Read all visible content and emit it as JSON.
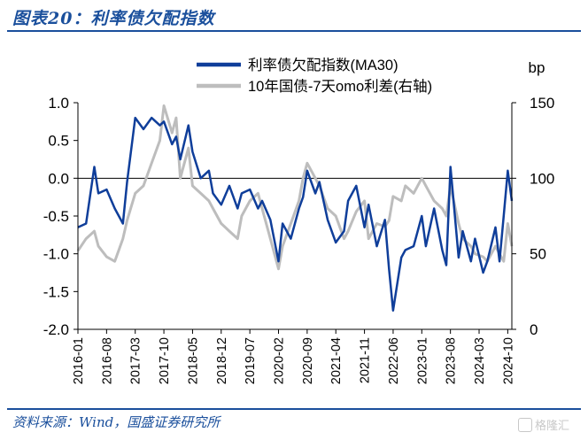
{
  "header": {
    "title": "图表20：利率债欠配指数"
  },
  "footer": {
    "source": "资料来源：Wind，国盛证券研究所",
    "watermark": "格隆汇"
  },
  "colors": {
    "primary": "#0f3e9a",
    "secondary": "#bdbdbd",
    "brand": "#1a4f9c"
  },
  "chart_data": {
    "type": "line",
    "y_axis_unit_right": "bp",
    "ylim_left": [
      -2.0,
      1.0
    ],
    "ylim_right": [
      0,
      150
    ],
    "yticks_left": [
      "1.0",
      "0.5",
      "0.0",
      "-0.5",
      "-1.0",
      "-1.5",
      "-2.0"
    ],
    "yticks_right": [
      "150",
      "100",
      "50",
      "0"
    ],
    "xticks": [
      "2016-01",
      "2016-08",
      "2017-03",
      "2017-10",
      "2018-05",
      "2018-12",
      "2019-07",
      "2020-02",
      "2020-09",
      "2021-04",
      "2021-11",
      "2022-06",
      "2023-01",
      "2023-08",
      "2024-03",
      "2024-10"
    ],
    "legend": "top-center",
    "series": [
      {
        "name": "利率债欠配指数(MA30)",
        "axis": "left",
        "color": "#0f3e9a",
        "x": [
          "2016-01",
          "2016-03",
          "2016-05",
          "2016-06",
          "2016-08",
          "2016-10",
          "2016-12",
          "2017-01",
          "2017-03",
          "2017-05",
          "2017-07",
          "2017-09",
          "2017-10",
          "2017-12",
          "2018-01",
          "2018-02",
          "2018-04",
          "2018-05",
          "2018-07",
          "2018-09",
          "2018-10",
          "2018-12",
          "2019-02",
          "2019-04",
          "2019-05",
          "2019-07",
          "2019-09",
          "2019-10",
          "2019-12",
          "2020-02",
          "2020-03",
          "2020-05",
          "2020-07",
          "2020-08",
          "2020-09",
          "2020-11",
          "2020-12",
          "2021-02",
          "2021-04",
          "2021-06",
          "2021-07",
          "2021-09",
          "2021-11",
          "2021-12",
          "2022-02",
          "2022-04",
          "2022-05",
          "2022-06",
          "2022-08",
          "2022-09",
          "2022-11",
          "2023-01",
          "2023-02",
          "2023-04",
          "2023-06",
          "2023-07",
          "2023-08",
          "2023-10",
          "2023-11",
          "2024-01",
          "2024-02",
          "2024-04",
          "2024-05",
          "2024-07",
          "2024-08",
          "2024-09",
          "2024-10",
          "2024-11"
        ],
        "values": [
          -0.65,
          -0.6,
          0.15,
          -0.2,
          -0.15,
          -0.4,
          -0.6,
          -0.05,
          0.8,
          0.65,
          0.8,
          0.7,
          0.75,
          0.45,
          0.55,
          0.25,
          0.7,
          0.35,
          0.0,
          0.1,
          -0.2,
          -0.35,
          -0.1,
          -0.4,
          -0.2,
          -0.15,
          -0.4,
          -0.3,
          -0.55,
          -1.1,
          -0.6,
          -0.8,
          -0.4,
          -0.25,
          0.1,
          -0.2,
          -0.05,
          -0.55,
          -0.85,
          -0.7,
          -0.3,
          -0.1,
          -0.65,
          -0.35,
          -0.9,
          -0.55,
          -1.2,
          -1.75,
          -1.05,
          -0.95,
          -0.9,
          -0.5,
          -0.9,
          -0.4,
          -0.95,
          -1.15,
          0.15,
          -1.05,
          -0.7,
          -1.1,
          -0.8,
          -1.25,
          -1.1,
          -0.65,
          -1.1,
          -0.5,
          0.1,
          -0.3
        ]
      },
      {
        "name": "10年国债-7天omo利差(右轴)",
        "axis": "right",
        "color": "#bdbdbd",
        "x": [
          "2016-01",
          "2016-03",
          "2016-05",
          "2016-06",
          "2016-08",
          "2016-10",
          "2016-12",
          "2017-01",
          "2017-03",
          "2017-05",
          "2017-07",
          "2017-09",
          "2017-10",
          "2017-12",
          "2018-01",
          "2018-02",
          "2018-04",
          "2018-05",
          "2018-07",
          "2018-09",
          "2018-10",
          "2018-12",
          "2019-02",
          "2019-04",
          "2019-05",
          "2019-07",
          "2019-09",
          "2019-10",
          "2019-12",
          "2020-02",
          "2020-03",
          "2020-05",
          "2020-07",
          "2020-08",
          "2020-09",
          "2020-11",
          "2020-12",
          "2021-02",
          "2021-04",
          "2021-06",
          "2021-07",
          "2021-09",
          "2021-11",
          "2021-12",
          "2022-02",
          "2022-04",
          "2022-05",
          "2022-06",
          "2022-08",
          "2022-09",
          "2022-11",
          "2023-01",
          "2023-02",
          "2023-04",
          "2023-06",
          "2023-07",
          "2023-08",
          "2023-10",
          "2023-11",
          "2024-01",
          "2024-02",
          "2024-04",
          "2024-05",
          "2024-07",
          "2024-08",
          "2024-09",
          "2024-10",
          "2024-11"
        ],
        "values": [
          52,
          60,
          65,
          55,
          48,
          45,
          60,
          72,
          90,
          95,
          110,
          125,
          148,
          130,
          140,
          100,
          120,
          95,
          90,
          85,
          80,
          70,
          65,
          60,
          75,
          85,
          90,
          80,
          60,
          40,
          55,
          70,
          85,
          100,
          110,
          100,
          95,
          80,
          75,
          60,
          65,
          78,
          85,
          60,
          70,
          68,
          72,
          88,
          85,
          95,
          90,
          100,
          95,
          85,
          80,
          75,
          95,
          70,
          60,
          55,
          50,
          48,
          45,
          55,
          50,
          45,
          70,
          55
        ]
      }
    ]
  }
}
